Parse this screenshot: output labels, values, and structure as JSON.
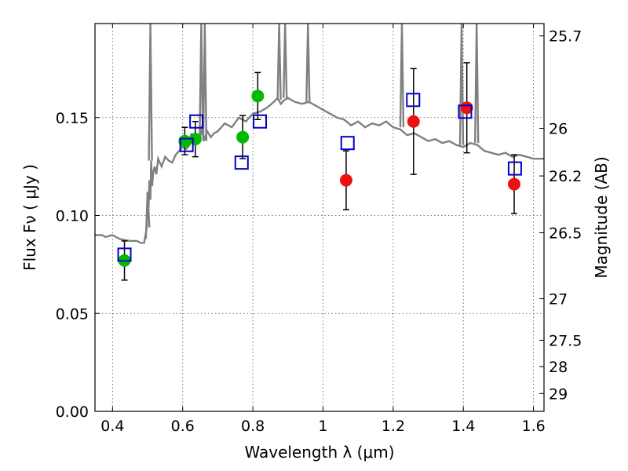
{
  "chart_data": {
    "type": "scatter",
    "title": "",
    "xlabel": "Wavelength  λ (μm)",
    "ylabel": "Flux  Fν  ( μJy )",
    "ylabel_right": "Magnitude (AB)",
    "xlim": [
      0.35,
      1.63
    ],
    "ylim": [
      0.0,
      0.198
    ],
    "grid": true,
    "x_ticks": [
      0.4,
      0.6,
      0.8,
      1.0,
      1.2,
      1.4,
      1.6
    ],
    "x_tick_labels": [
      "0.4",
      "0.6",
      "0.8",
      "1",
      "1.2",
      "1.4",
      "1.6"
    ],
    "y_ticks": [
      0.0,
      0.05,
      0.1,
      0.15
    ],
    "y_tick_labels": [
      "0.00",
      "0.05",
      "0.10",
      "0.15"
    ],
    "right_ticks": [
      {
        "label": "25.7",
        "flux": 0.1917
      },
      {
        "label": "26",
        "flux": 0.1445
      },
      {
        "label": "26.2",
        "flux": 0.1202
      },
      {
        "label": "26.5",
        "flux": 0.0912
      },
      {
        "label": "27",
        "flux": 0.0575
      },
      {
        "label": "27.5",
        "flux": 0.0363
      },
      {
        "label": "28",
        "flux": 0.0229
      },
      {
        "label": "29",
        "flux": 0.0091
      }
    ],
    "series": [
      {
        "kind": "line",
        "color": "#808080",
        "x": [
          0.35,
          0.37,
          0.38,
          0.4,
          0.42,
          0.45,
          0.47,
          0.48,
          0.49,
          0.498,
          0.5,
          0.502,
          0.505,
          0.508,
          0.51,
          0.513,
          0.516,
          0.52,
          0.525,
          0.53,
          0.54,
          0.55,
          0.56,
          0.57,
          0.58,
          0.59,
          0.6,
          0.61,
          0.62,
          0.625,
          0.63,
          0.64,
          0.65,
          0.656,
          0.66,
          0.67,
          0.68,
          0.69,
          0.7,
          0.72,
          0.74,
          0.76,
          0.78,
          0.8,
          0.82,
          0.84,
          0.86,
          0.87,
          0.88,
          0.89,
          0.9,
          0.92,
          0.94,
          0.96,
          0.98,
          1.0,
          1.02,
          1.04,
          1.06,
          1.08,
          1.1,
          1.12,
          1.14,
          1.16,
          1.18,
          1.2,
          1.22,
          1.24,
          1.26,
          1.28,
          1.3,
          1.32,
          1.34,
          1.36,
          1.38,
          1.4,
          1.42,
          1.44,
          1.46,
          1.48,
          1.5,
          1.52,
          1.54,
          1.56,
          1.58,
          1.6,
          1.63
        ],
        "y": [
          0.09,
          0.09,
          0.089,
          0.09,
          0.088,
          0.087,
          0.087,
          0.086,
          0.086,
          0.094,
          0.112,
          0.1,
          0.118,
          0.108,
          0.128,
          0.115,
          0.122,
          0.125,
          0.121,
          0.129,
          0.125,
          0.13,
          0.128,
          0.127,
          0.131,
          0.133,
          0.135,
          0.134,
          0.136,
          0.142,
          0.137,
          0.141,
          0.14,
          0.146,
          0.138,
          0.143,
          0.14,
          0.142,
          0.143,
          0.147,
          0.145,
          0.15,
          0.148,
          0.152,
          0.153,
          0.155,
          0.158,
          0.16,
          0.157,
          0.159,
          0.16,
          0.158,
          0.157,
          0.158,
          0.156,
          0.154,
          0.152,
          0.15,
          0.149,
          0.146,
          0.148,
          0.145,
          0.147,
          0.146,
          0.148,
          0.145,
          0.144,
          0.141,
          0.142,
          0.14,
          0.138,
          0.139,
          0.137,
          0.138,
          0.136,
          0.135,
          0.137,
          0.136,
          0.133,
          0.132,
          0.131,
          0.132,
          0.13,
          0.131,
          0.13,
          0.129,
          0.129
        ]
      },
      {
        "kind": "line",
        "color": "#808080",
        "x": [
          0.495,
          0.5,
          0.505
        ],
        "y": [
          0.088,
          0.112,
          0.094
        ]
      },
      {
        "kind": "points",
        "marker": "circle",
        "color": "#00bb00",
        "x": [
          0.434,
          0.606,
          0.636,
          0.771,
          0.814
        ],
        "y": [
          0.077,
          0.138,
          0.139,
          0.14,
          0.161
        ],
        "yerr": [
          0.01,
          0.007,
          0.009,
          0.011,
          0.012
        ]
      },
      {
        "kind": "points",
        "marker": "circle",
        "color": "#ee1111",
        "x": [
          1.066,
          1.258,
          1.41,
          1.545
        ],
        "y": [
          0.118,
          0.148,
          0.155,
          0.116
        ],
        "yerr": [
          0.015,
          0.027,
          0.023,
          0.015
        ]
      },
      {
        "kind": "points",
        "marker": "open-square",
        "color": "#0000cc",
        "x": [
          0.434,
          0.611,
          0.639,
          0.768,
          0.82,
          1.07,
          1.257,
          1.405,
          1.547
        ],
        "y": [
          0.08,
          0.136,
          0.148,
          0.127,
          0.148,
          0.137,
          0.159,
          0.153,
          0.124
        ]
      }
    ]
  }
}
